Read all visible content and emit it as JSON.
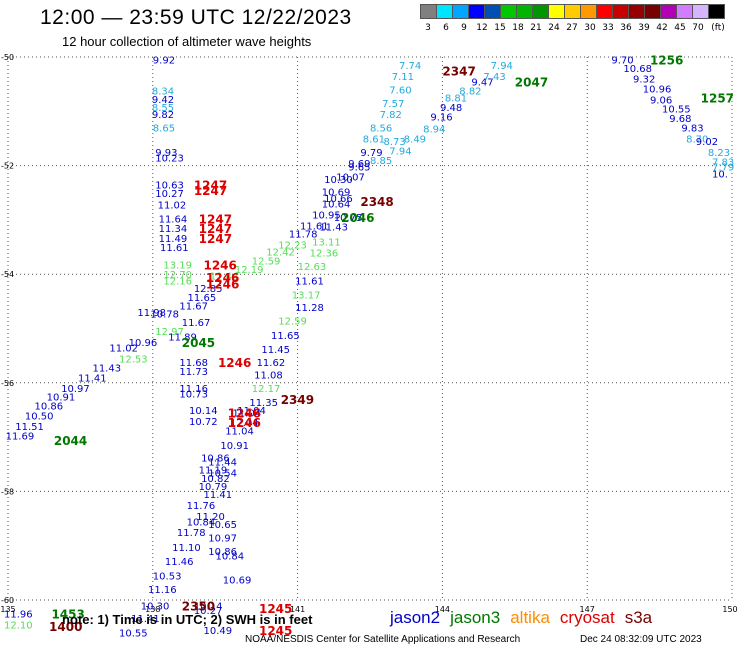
{
  "title": "12:00 — 23:59 UTC 12/22/2023",
  "subtitle": "12 hour collection of altimeter wave heights",
  "scale": {
    "unit": "(ft)",
    "colors": [
      "#808080",
      "#00e5ff",
      "#00a6ff",
      "#0000ff",
      "#0050b4",
      "#00c800",
      "#00b400",
      "#009600",
      "#ffff00",
      "#ffcc00",
      "#ff9900",
      "#ff0000",
      "#c80000",
      "#960000",
      "#780000",
      "#b400b4",
      "#d27dff",
      "#d7b4ff",
      "#000000"
    ],
    "ticks": [
      "3",
      "6",
      "9",
      "12",
      "15",
      "18",
      "21",
      "24",
      "27",
      "30",
      "33",
      "36",
      "39",
      "42",
      "45",
      "70"
    ]
  },
  "colors": {
    "jason2": "#0000c8",
    "jason3": "#007800",
    "altika": "#ff8c00",
    "cryosat": "#dc0000",
    "s3a": "#780000",
    "light_blue": "#22aadd",
    "light_green": "#55dd55"
  },
  "axes": {
    "x_ticks": [
      "135",
      "138",
      "141",
      "144",
      "147",
      "150"
    ],
    "y_ticks": [
      "-50",
      "-52",
      "-54",
      "-56",
      "-58",
      "-60"
    ]
  },
  "observations": [
    {
      "t": "9.92",
      "lon": 138.0,
      "lat": -50.05,
      "c": "jason2"
    },
    {
      "t": "8.34",
      "lon": 137.98,
      "lat": -50.62,
      "c": "light_blue"
    },
    {
      "t": "9.42",
      "lon": 137.98,
      "lat": -50.77,
      "c": "jason2"
    },
    {
      "t": "8.55",
      "lon": 137.98,
      "lat": -50.92,
      "c": "light_blue"
    },
    {
      "t": "9.82",
      "lon": 137.98,
      "lat": -51.05,
      "c": "jason2"
    },
    {
      "t": "8.65",
      "lon": 138.0,
      "lat": -51.3,
      "c": "light_blue"
    },
    {
      "t": "9.93",
      "lon": 138.05,
      "lat": -51.75,
      "c": "jason2"
    },
    {
      "t": "10.23",
      "lon": 138.05,
      "lat": -51.85,
      "c": "jason2"
    },
    {
      "t": "10.63",
      "lon": 138.05,
      "lat": -52.35,
      "c": "jason2"
    },
    {
      "t": "10.27",
      "lon": 138.05,
      "lat": -52.5,
      "c": "jason2"
    },
    {
      "t": "11.02",
      "lon": 138.1,
      "lat": -52.72,
      "c": "jason2"
    },
    {
      "t": "11.64",
      "lon": 138.12,
      "lat": -52.97,
      "c": "jason2"
    },
    {
      "t": "11.34",
      "lon": 138.12,
      "lat": -53.15,
      "c": "jason2"
    },
    {
      "t": "11.49",
      "lon": 138.12,
      "lat": -53.33,
      "c": "jason2"
    },
    {
      "t": "11.61",
      "lon": 138.15,
      "lat": -53.5,
      "c": "jason2"
    },
    {
      "t": "13.19",
      "lon": 138.22,
      "lat": -53.82,
      "c": "light_green"
    },
    {
      "t": "12.70",
      "lon": 138.22,
      "lat": -54.0,
      "c": "light_green"
    },
    {
      "t": "12.16",
      "lon": 138.22,
      "lat": -54.12,
      "c": "light_green"
    },
    {
      "t": "12.44",
      "lon": 139.18,
      "lat": -54.02,
      "c": "light_green"
    },
    {
      "t": "12.19",
      "lon": 139.7,
      "lat": -53.9,
      "c": "light_green"
    },
    {
      "t": "12.59",
      "lon": 140.05,
      "lat": -53.75,
      "c": "light_green"
    },
    {
      "t": "12.42",
      "lon": 140.35,
      "lat": -53.58,
      "c": "light_green"
    },
    {
      "t": "12.23",
      "lon": 140.6,
      "lat": -53.45,
      "c": "light_green"
    },
    {
      "t": "13.11",
      "lon": 141.3,
      "lat": -53.4,
      "c": "light_green"
    },
    {
      "t": "12.36",
      "lon": 141.25,
      "lat": -53.6,
      "c": "light_green"
    },
    {
      "t": "12.63",
      "lon": 141.0,
      "lat": -53.85,
      "c": "light_green"
    },
    {
      "t": "11.78",
      "lon": 140.82,
      "lat": -53.25,
      "c": "jason2"
    },
    {
      "t": "11.61",
      "lon": 141.05,
      "lat": -53.1,
      "c": "jason2"
    },
    {
      "t": "11.43",
      "lon": 141.45,
      "lat": -53.12,
      "c": "jason2"
    },
    {
      "t": "10.95",
      "lon": 141.3,
      "lat": -52.9,
      "c": "jason2"
    },
    {
      "t": "10.75",
      "lon": 141.75,
      "lat": -52.95,
      "c": "jason2"
    },
    {
      "t": "10.64",
      "lon": 141.5,
      "lat": -52.7,
      "c": "jason2"
    },
    {
      "t": "10.66",
      "lon": 141.55,
      "lat": -52.6,
      "c": "jason2"
    },
    {
      "t": "10.69",
      "lon": 141.5,
      "lat": -52.48,
      "c": "jason2"
    },
    {
      "t": "10.30",
      "lon": 141.55,
      "lat": -52.25,
      "c": "jason2"
    },
    {
      "t": "10.07",
      "lon": 141.8,
      "lat": -52.2,
      "c": "jason2"
    },
    {
      "t": "9.69",
      "lon": 142.05,
      "lat": -51.95,
      "c": "jason2"
    },
    {
      "t": "9.79",
      "lon": 142.3,
      "lat": -51.75,
      "c": "jason2"
    },
    {
      "t": "9.65",
      "lon": 142.05,
      "lat": -52.02,
      "c": "jason2"
    },
    {
      "t": "8.61",
      "lon": 142.35,
      "lat": -51.5,
      "c": "light_blue"
    },
    {
      "t": "8.56",
      "lon": 142.5,
      "lat": -51.3,
      "c": "light_blue"
    },
    {
      "t": "7.82",
      "lon": 142.7,
      "lat": -51.05,
      "c": "light_blue"
    },
    {
      "t": "7.57",
      "lon": 142.75,
      "lat": -50.85,
      "c": "light_blue"
    },
    {
      "t": "7.60",
      "lon": 142.9,
      "lat": -50.6,
      "c": "light_blue"
    },
    {
      "t": "7.11",
      "lon": 142.95,
      "lat": -50.35,
      "c": "light_blue"
    },
    {
      "t": "7.74",
      "lon": 143.1,
      "lat": -50.15,
      "c": "light_blue"
    },
    {
      "t": "8.85",
      "lon": 142.5,
      "lat": -51.9,
      "c": "light_blue"
    },
    {
      "t": "8.73",
      "lon": 142.78,
      "lat": -51.55,
      "c": "light_blue"
    },
    {
      "t": "7.94",
      "lon": 142.9,
      "lat": -51.72,
      "c": "light_blue"
    },
    {
      "t": "8.49",
      "lon": 143.2,
      "lat": -51.5,
      "c": "light_blue"
    },
    {
      "t": "8.94",
      "lon": 143.6,
      "lat": -51.32,
      "c": "light_blue"
    },
    {
      "t": "9.16",
      "lon": 143.75,
      "lat": -51.1,
      "c": "jason2"
    },
    {
      "t": "9.48",
      "lon": 143.95,
      "lat": -50.92,
      "c": "jason2"
    },
    {
      "t": "8.81",
      "lon": 144.05,
      "lat": -50.75,
      "c": "light_blue"
    },
    {
      "t": "8.82",
      "lon": 144.35,
      "lat": -50.62,
      "c": "light_blue"
    },
    {
      "t": "9.47",
      "lon": 144.6,
      "lat": -50.45,
      "c": "jason2"
    },
    {
      "t": "7.43",
      "lon": 144.85,
      "lat": -50.35,
      "c": "light_blue"
    },
    {
      "t": "7.94",
      "lon": 145.0,
      "lat": -50.15,
      "c": "light_blue"
    },
    {
      "t": "9.70",
      "lon": 147.5,
      "lat": -50.05,
      "c": "jason2"
    },
    {
      "t": "10.68",
      "lon": 147.75,
      "lat": -50.2,
      "c": "jason2"
    },
    {
      "t": "9.32",
      "lon": 147.95,
      "lat": -50.4,
      "c": "jason2"
    },
    {
      "t": "10.96",
      "lon": 148.15,
      "lat": -50.58,
      "c": "jason2"
    },
    {
      "t": "9.06",
      "lon": 148.3,
      "lat": -50.78,
      "c": "jason2"
    },
    {
      "t": "10.55",
      "lon": 148.55,
      "lat": -50.95,
      "c": "jason2"
    },
    {
      "t": "9.68",
      "lon": 148.7,
      "lat": -51.12,
      "c": "jason2"
    },
    {
      "t": "9.83",
      "lon": 148.95,
      "lat": -51.3,
      "c": "jason2"
    },
    {
      "t": "8.70",
      "lon": 149.05,
      "lat": -51.5,
      "c": "light_blue"
    },
    {
      "t": "9.02",
      "lon": 149.25,
      "lat": -51.55,
      "c": "jason2"
    },
    {
      "t": "8.23",
      "lon": 149.5,
      "lat": -51.75,
      "c": "light_blue"
    },
    {
      "t": "7.83",
      "lon": 149.7,
      "lat": -51.92,
      "c": "light_blue"
    },
    {
      "t": "7.79",
      "lon": 149.85,
      "lat": -52.02,
      "c": "light_blue"
    },
    {
      "t": "10.",
      "lon": 149.95,
      "lat": -52.15,
      "c": "jason2"
    },
    {
      "t": "11.61",
      "lon": 140.95,
      "lat": -54.12,
      "c": "jason2"
    },
    {
      "t": "13.17",
      "lon": 140.88,
      "lat": -54.37,
      "c": "light_green"
    },
    {
      "t": "11.28",
      "lon": 140.95,
      "lat": -54.6,
      "c": "jason2"
    },
    {
      "t": "12.59",
      "lon": 140.6,
      "lat": -54.85,
      "c": "light_green"
    },
    {
      "t": "11.65",
      "lon": 140.45,
      "lat": -55.12,
      "c": "jason2"
    },
    {
      "t": "11.45",
      "lon": 140.25,
      "lat": -55.38,
      "c": "jason2"
    },
    {
      "t": "11.62",
      "lon": 140.15,
      "lat": -55.62,
      "c": "jason2"
    },
    {
      "t": "11.08",
      "lon": 140.1,
      "lat": -55.85,
      "c": "jason2"
    },
    {
      "t": "12.17",
      "lon": 140.05,
      "lat": -56.1,
      "c": "light_green"
    },
    {
      "t": "11.35",
      "lon": 140.0,
      "lat": -56.35,
      "c": "jason2"
    },
    {
      "t": "11.04",
      "lon": 139.65,
      "lat": -56.55,
      "c": "jason2"
    },
    {
      "t": "11.04",
      "lon": 139.5,
      "lat": -56.88,
      "c": "jason2"
    },
    {
      "t": "10.91",
      "lon": 139.4,
      "lat": -57.15,
      "c": "jason2"
    },
    {
      "t": "10.86",
      "lon": 139.0,
      "lat": -57.38,
      "c": "jason2"
    },
    {
      "t": "11.44",
      "lon": 139.15,
      "lat": -57.45,
      "c": "jason2"
    },
    {
      "t": "11.19",
      "lon": 138.95,
      "lat": -57.6,
      "c": "jason2"
    },
    {
      "t": "10.54",
      "lon": 139.15,
      "lat": -57.65,
      "c": "jason2"
    },
    {
      "t": "10.82",
      "lon": 139.0,
      "lat": -57.75,
      "c": "jason2"
    },
    {
      "t": "10.79",
      "lon": 138.95,
      "lat": -57.9,
      "c": "jason2"
    },
    {
      "t": "11.41",
      "lon": 139.05,
      "lat": -58.05,
      "c": "jason2"
    },
    {
      "t": "11.76",
      "lon": 138.7,
      "lat": -58.25,
      "c": "jason2"
    },
    {
      "t": "11.20",
      "lon": 138.9,
      "lat": -58.45,
      "c": "jason2"
    },
    {
      "t": "10.84",
      "lon": 138.7,
      "lat": -58.55,
      "c": "jason2"
    },
    {
      "t": "10.65",
      "lon": 139.15,
      "lat": -58.6,
      "c": "jason2"
    },
    {
      "t": "11.78",
      "lon": 138.5,
      "lat": -58.75,
      "c": "jason2"
    },
    {
      "t": "10.97",
      "lon": 139.15,
      "lat": -58.85,
      "c": "jason2"
    },
    {
      "t": "11.10",
      "lon": 138.4,
      "lat": -59.02,
      "c": "jason2"
    },
    {
      "t": "10.86",
      "lon": 139.15,
      "lat": -59.1,
      "c": "jason2"
    },
    {
      "t": "10.84",
      "lon": 139.3,
      "lat": -59.18,
      "c": "jason2"
    },
    {
      "t": "11.46",
      "lon": 138.25,
      "lat": -59.28,
      "c": "jason2"
    },
    {
      "t": "10.53",
      "lon": 138.0,
      "lat": -59.55,
      "c": "jason2"
    },
    {
      "t": "10.69",
      "lon": 139.45,
      "lat": -59.62,
      "c": "jason2"
    },
    {
      "t": "11.16",
      "lon": 137.9,
      "lat": -59.8,
      "c": "jason2"
    },
    {
      "t": "10.30",
      "lon": 137.75,
      "lat": -60.1,
      "c": "jason2"
    },
    {
      "t": "10.14",
      "lon": 138.85,
      "lat": -60.1,
      "c": "jason2"
    },
    {
      "t": "10.27",
      "lon": 138.85,
      "lat": -60.18,
      "c": "jason2"
    },
    {
      "t": "11.41",
      "lon": 137.55,
      "lat": -60.33,
      "c": "jason2"
    },
    {
      "t": "10.49",
      "lon": 139.05,
      "lat": -60.55,
      "c": "jason2"
    },
    {
      "t": "10.55",
      "lon": 137.3,
      "lat": -60.6,
      "c": "jason2"
    },
    {
      "t": "11.98",
      "lon": 137.68,
      "lat": -54.7,
      "c": "jason2"
    },
    {
      "t": "10.78",
      "lon": 137.95,
      "lat": -54.72,
      "c": "jason2"
    },
    {
      "t": "11.67",
      "lon": 138.55,
      "lat": -54.58,
      "c": "jason2"
    },
    {
      "t": "11.65",
      "lon": 138.72,
      "lat": -54.42,
      "c": "jason2"
    },
    {
      "t": "12.85",
      "lon": 138.85,
      "lat": -54.25,
      "c": "jason2"
    },
    {
      "t": "11.67",
      "lon": 138.6,
      "lat": -54.88,
      "c": "jason2"
    },
    {
      "t": "12.97",
      "lon": 138.05,
      "lat": -55.05,
      "c": "light_green"
    },
    {
      "t": "11.89",
      "lon": 138.32,
      "lat": -55.15,
      "c": "jason2"
    },
    {
      "t": "10.96",
      "lon": 137.5,
      "lat": -55.25,
      "c": "jason2"
    },
    {
      "t": "11.02",
      "lon": 137.1,
      "lat": -55.35,
      "c": "jason2"
    },
    {
      "t": "12.53",
      "lon": 137.3,
      "lat": -55.55,
      "c": "light_green"
    },
    {
      "t": "11.43",
      "lon": 136.75,
      "lat": -55.72,
      "c": "jason2"
    },
    {
      "t": "11.41",
      "lon": 136.45,
      "lat": -55.9,
      "c": "jason2"
    },
    {
      "t": "10.97",
      "lon": 136.1,
      "lat": -56.1,
      "c": "jason2"
    },
    {
      "t": "10.91",
      "lon": 135.8,
      "lat": -56.25,
      "c": "jason2"
    },
    {
      "t": "10.86",
      "lon": 135.55,
      "lat": -56.42,
      "c": "jason2"
    },
    {
      "t": "10.50",
      "lon": 135.35,
      "lat": -56.6,
      "c": "jason2"
    },
    {
      "t": "11.51",
      "lon": 135.15,
      "lat": -56.8,
      "c": "jason2"
    },
    {
      "t": "11.69",
      "lon": 134.95,
      "lat": -56.97,
      "c": "jason2"
    },
    {
      "t": "11.68",
      "lon": 138.55,
      "lat": -55.62,
      "c": "jason2"
    },
    {
      "t": "11.73",
      "lon": 138.55,
      "lat": -55.78,
      "c": "jason2"
    },
    {
      "t": "11.16",
      "lon": 138.55,
      "lat": -56.1,
      "c": "jason2"
    },
    {
      "t": "10.73",
      "lon": 138.55,
      "lat": -56.2,
      "c": "jason2"
    },
    {
      "t": "10.14",
      "lon": 138.75,
      "lat": -56.5,
      "c": "jason2"
    },
    {
      "t": "10.72",
      "lon": 138.75,
      "lat": -56.7,
      "c": "jason2"
    },
    {
      "t": "11.04",
      "lon": 139.75,
      "lat": -56.5,
      "c": "jason2"
    },
    {
      "t": "12.04",
      "lon": 139.6,
      "lat": -56.72,
      "c": "jason2"
    },
    {
      "t": "11.96",
      "lon": 134.9,
      "lat": -60.25,
      "c": "jason2"
    },
    {
      "t": "12.10",
      "lon": 134.9,
      "lat": -60.45,
      "c": "light_green"
    }
  ],
  "time_labels": [
    {
      "t": "2347",
      "lon": 144.0,
      "lat": -50.25,
      "c": "s3a"
    },
    {
      "t": "2047",
      "lon": 145.5,
      "lat": -50.45,
      "c": "jason3"
    },
    {
      "t": "1256",
      "lon": 148.3,
      "lat": -50.05,
      "c": "jason3"
    },
    {
      "t": "1257",
      "lon": 149.35,
      "lat": -50.75,
      "c": "jason3"
    },
    {
      "t": "2348",
      "lon": 142.3,
      "lat": -52.65,
      "c": "s3a"
    },
    {
      "t": "2046",
      "lon": 141.9,
      "lat": -52.95,
      "c": "jason3"
    },
    {
      "t": "1247",
      "lon": 138.85,
      "lat": -52.35,
      "c": "cryosat"
    },
    {
      "t": "1247",
      "lon": 138.85,
      "lat": -52.45,
      "c": "cryosat"
    },
    {
      "t": "1247",
      "lon": 138.95,
      "lat": -52.97,
      "c": "cryosat"
    },
    {
      "t": "1247",
      "lon": 138.95,
      "lat": -53.15,
      "c": "cryosat"
    },
    {
      "t": "1247",
      "lon": 138.95,
      "lat": -53.33,
      "c": "cryosat"
    },
    {
      "t": "1246",
      "lon": 139.05,
      "lat": -53.82,
      "c": "cryosat"
    },
    {
      "t": "1246",
      "lon": 139.1,
      "lat": -54.05,
      "c": "cryosat"
    },
    {
      "t": "1246",
      "lon": 139.1,
      "lat": -54.17,
      "c": "cryosat"
    },
    {
      "t": "2045",
      "lon": 138.6,
      "lat": -55.25,
      "c": "jason3"
    },
    {
      "t": "1246",
      "lon": 139.35,
      "lat": -55.62,
      "c": "cryosat"
    },
    {
      "t": "2349",
      "lon": 140.65,
      "lat": -56.3,
      "c": "s3a"
    },
    {
      "t": "1246",
      "lon": 139.55,
      "lat": -56.55,
      "c": "cryosat"
    },
    {
      "t": "1246",
      "lon": 139.55,
      "lat": -56.72,
      "c": "cryosat"
    },
    {
      "t": "2044",
      "lon": 135.95,
      "lat": -57.05,
      "c": "jason3"
    },
    {
      "t": "2350",
      "lon": 138.6,
      "lat": -60.1,
      "c": "s3a"
    },
    {
      "t": "1245",
      "lon": 140.2,
      "lat": -60.15,
      "c": "cryosat"
    },
    {
      "t": "1245",
      "lon": 140.2,
      "lat": -60.55,
      "c": "cryosat"
    },
    {
      "t": "1453",
      "lon": 135.9,
      "lat": -60.25,
      "c": "jason3"
    },
    {
      "t": "1400",
      "lon": 135.85,
      "lat": -60.48,
      "c": "s3a"
    }
  ],
  "note": "note:  1) Time is in UTC;  2) SWH is in feet",
  "legend": [
    {
      "label": "jason2",
      "c": "jason2"
    },
    {
      "label": "jason3",
      "c": "jason3"
    },
    {
      "label": "altika",
      "c": "altika"
    },
    {
      "label": "cryosat",
      "c": "cryosat"
    },
    {
      "label": "s3a",
      "c": "s3a"
    }
  ],
  "footer_left": "NOAA/NESDIS Center for Satellite Applications and Research",
  "footer_right": "Dec 24 08:32:09 UTC 2023"
}
